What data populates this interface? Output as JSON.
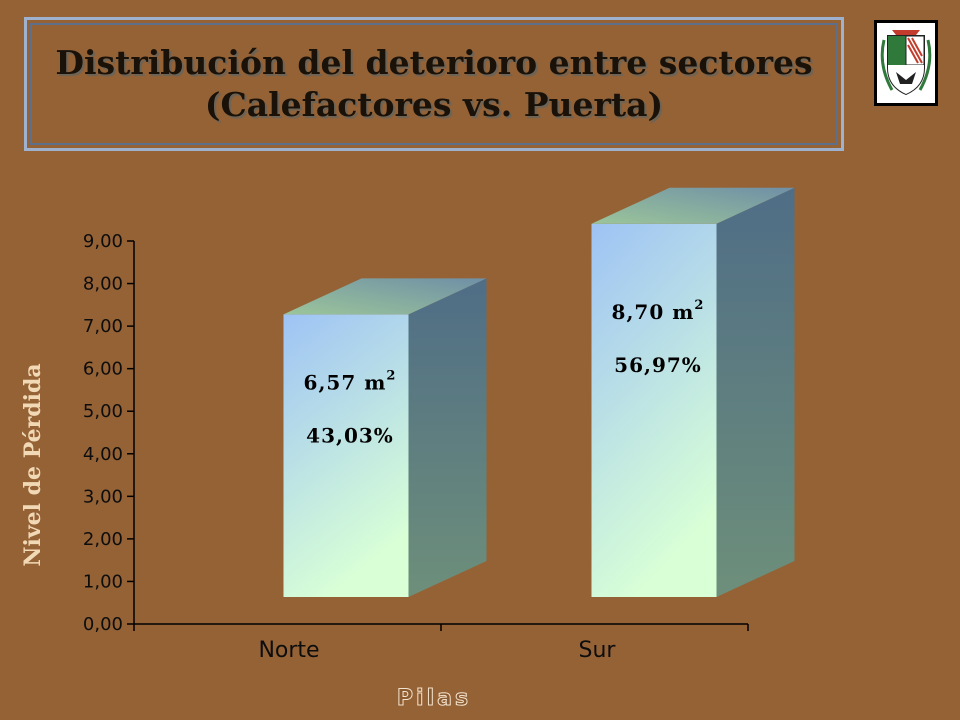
{
  "title": {
    "line1": "Distribución del deterioro entre sectores",
    "line2": "(Calefactores vs. Puerta)"
  },
  "logo": {
    "icon": "crest-icon"
  },
  "colors": {
    "background": "#956236",
    "bar_front_top": "#9ec3f5",
    "bar_front_bottom": "#d8ffd6",
    "bar_side": "#5a7b8a",
    "bar_top": "#8fae95"
  },
  "chart_data": {
    "type": "bar",
    "categories": [
      "Norte",
      "Sur"
    ],
    "values": [
      6.57,
      8.7
    ],
    "value_labels": [
      "6,57 m",
      "8,70 m"
    ],
    "unit_superscript": "2",
    "percent_labels": [
      "43,03%",
      "56,97%"
    ],
    "ylim": [
      0,
      9
    ],
    "y_ticks": [
      "0,00",
      "1,00",
      "2,00",
      "3,00",
      "4,00",
      "5,00",
      "6,00",
      "7,00",
      "8,00",
      "9,00"
    ],
    "xlabel": "Pilas",
    "ylabel": "Nivel de Pérdida",
    "grid": false,
    "legend": "none",
    "style": "3d-column"
  }
}
